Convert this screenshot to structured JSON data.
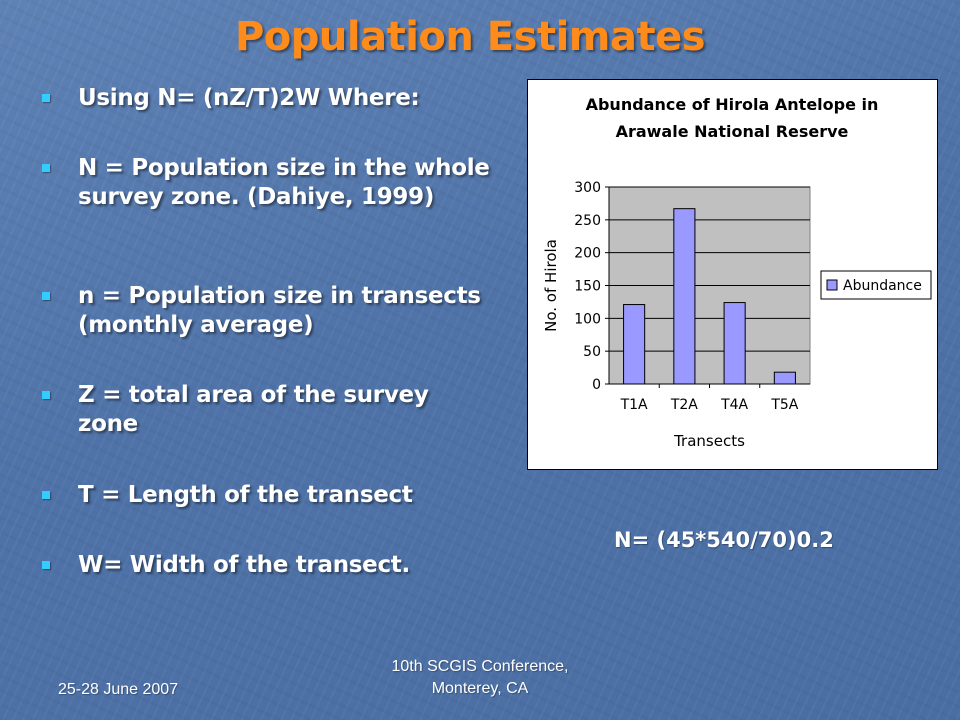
{
  "slide": {
    "title": "Population Estimates",
    "bullet_color": "#33ccff",
    "title_color": "#ff8c1a"
  },
  "bullets": [
    {
      "text": "Using N= (nZ/T)2W Where:"
    },
    {
      "text": "N = Population size in the whole survey zone. (Dahiye, 1999)"
    },
    {
      "text": "n = Population size in transects (monthly average)"
    },
    {
      "text": "Z = total area of the survey zone"
    },
    {
      "text": "T = Length of the transect"
    },
    {
      "text": "W= Width of the transect."
    }
  ],
  "formula": "N= (45*540/70)0.2",
  "footer": {
    "date": "25-28 June 2007",
    "conference_line1": "10th SCGIS Conference,",
    "conference_line2": "Monterey, CA"
  },
  "chart_data": {
    "type": "bar",
    "title_lines": [
      "Abundance of Hirola Antelope in",
      "Arawale National Reserve"
    ],
    "categories": [
      "T1A",
      "T2A",
      "T4A",
      "T5A"
    ],
    "series": [
      {
        "name": "Abundance",
        "values": [
          121,
          267,
          124,
          18
        ],
        "color": "#9999ff"
      }
    ],
    "xlabel": "Transects",
    "ylabel": "No. of Hirola",
    "ylim": [
      0,
      300
    ],
    "yticks": [
      0,
      50,
      100,
      150,
      200,
      250,
      300
    ],
    "grid": true,
    "plot_background": "#c0c0c0",
    "legend_position": "right"
  }
}
